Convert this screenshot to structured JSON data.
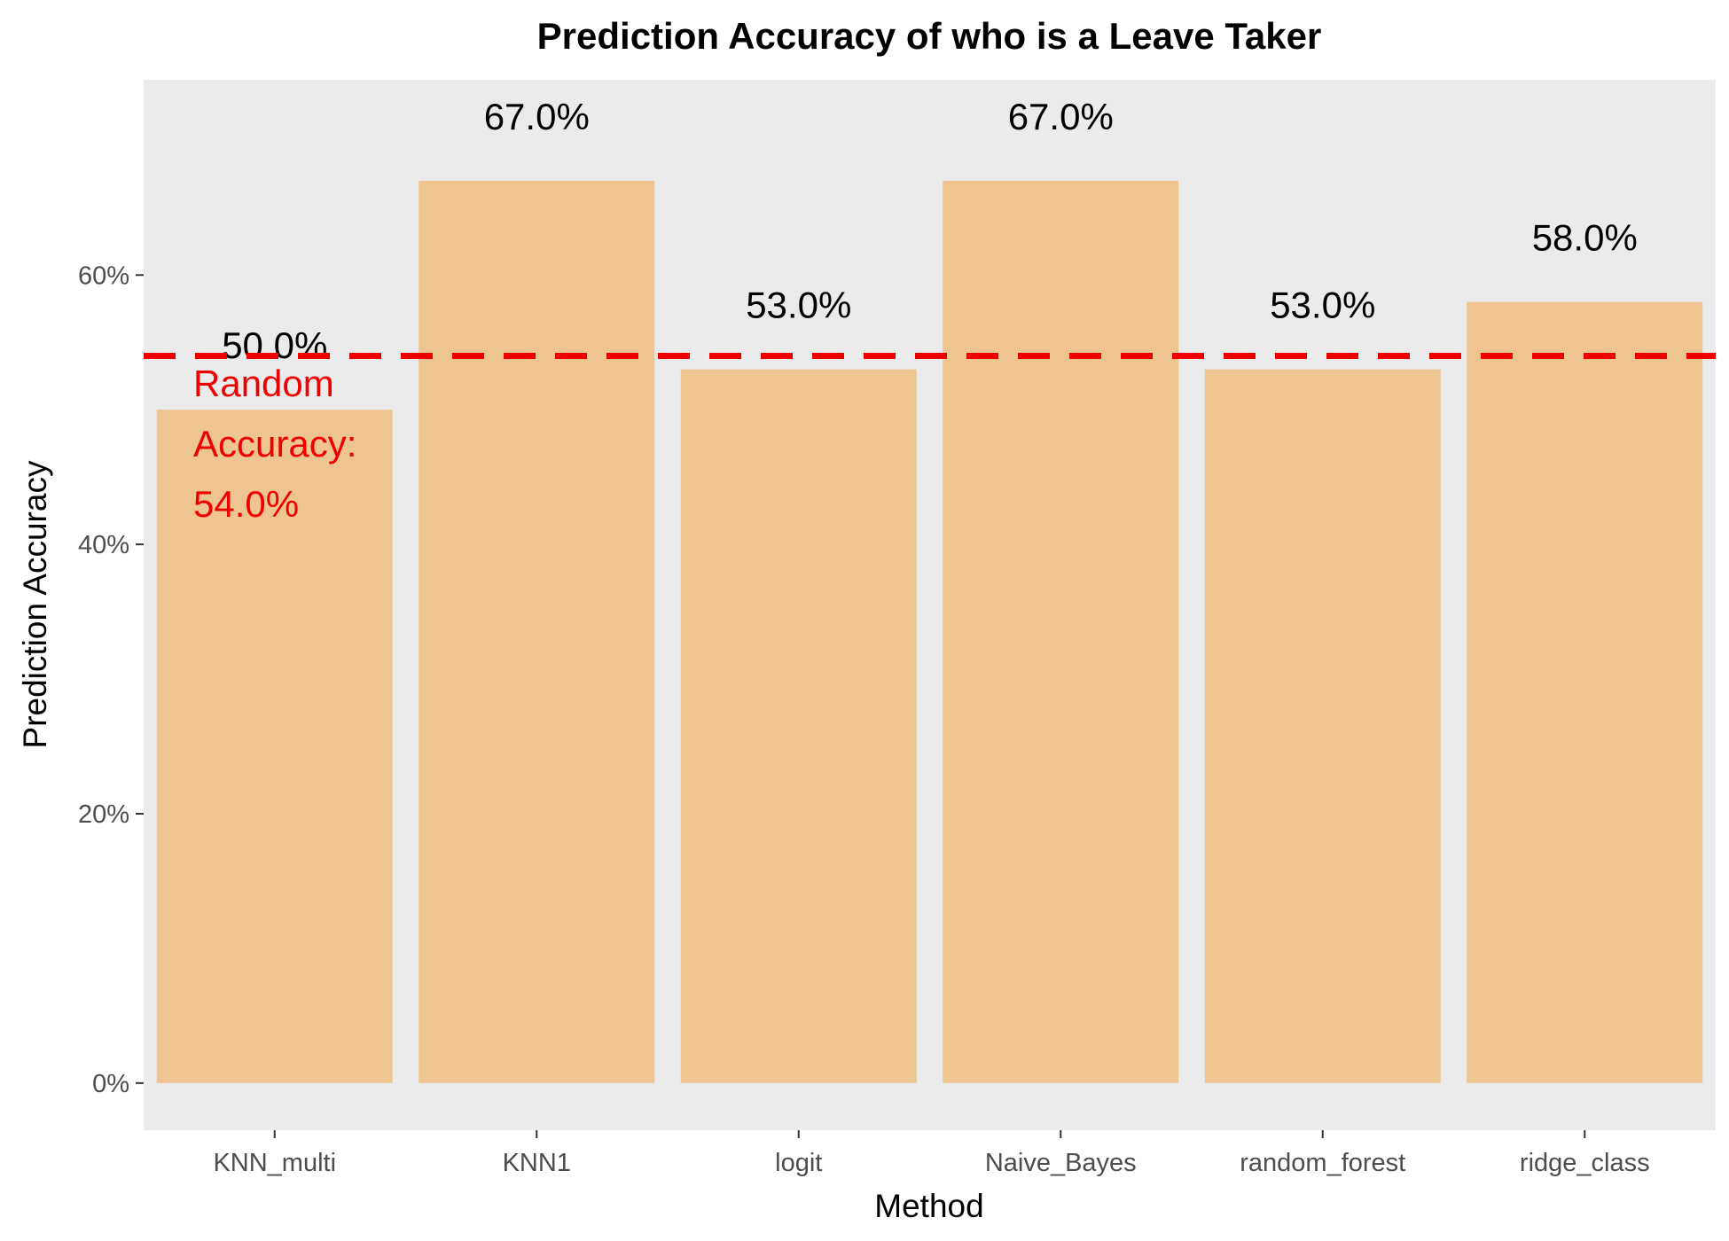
{
  "chart_data": {
    "type": "bar",
    "title": "Prediction Accuracy of who is a Leave Taker",
    "xlabel": "Method",
    "ylabel": "Prediction Accuracy",
    "categories": [
      "KNN_multi",
      "KNN1",
      "logit",
      "Naive_Bayes",
      "random_forest",
      "ridge_class"
    ],
    "values": [
      0.5,
      0.67,
      0.53,
      0.67,
      0.53,
      0.58
    ],
    "value_labels": [
      "50.0%",
      "67.0%",
      "53.0%",
      "67.0%",
      "53.0%",
      "58.0%"
    ],
    "ylim": [
      -0.035,
      0.745
    ],
    "y_ticks": [
      0,
      0.2,
      0.4,
      0.6
    ],
    "y_tick_labels": [
      "0%",
      "20%",
      "40%",
      "60%"
    ],
    "grid": false,
    "legend": "none",
    "reference_line": {
      "value": 0.54,
      "style": "dashed",
      "label_lines": [
        "Random",
        "Accuracy:",
        "54.0%"
      ]
    },
    "colors": {
      "bar": "#EEC591",
      "panel_background": "#EBEBEB",
      "reference_line": "#EE0000",
      "reference_label": "#EE0000"
    }
  }
}
